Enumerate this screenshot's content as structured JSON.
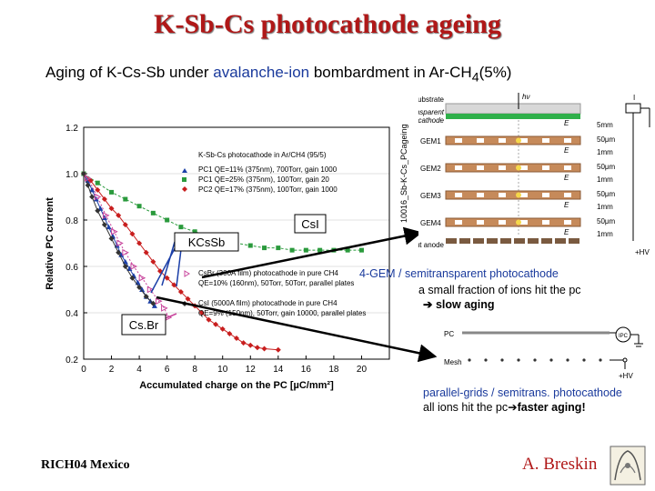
{
  "title": "K-Sb-Cs photocathode ageing",
  "subtitle": {
    "part1": "Aging of K-Cs-Sb under ",
    "highlight": "avalanche-ion",
    "part2": " bombardment in Ar-CH",
    "sub": "4",
    "part3": "(5%)"
  },
  "chart_data": {
    "type": "scatter",
    "xlabel": "Accumulated charge on the PC [µC/mm²]",
    "ylabel": "Relative PC current",
    "xlim": [
      0,
      22
    ],
    "ylim": [
      0.2,
      1.2
    ],
    "xticks": [
      "0",
      "2",
      "4",
      "6",
      "8",
      "10",
      "12",
      "14",
      "16",
      "18",
      "20"
    ],
    "yticks": [
      "0.2",
      "0.4",
      "0.6",
      "0.8",
      "1.0",
      "1.2"
    ],
    "side_label": "10016_Sb-K-Cs_PCageing",
    "legend1": {
      "title": "K-Sb-Cs photocathode in Ar/CH4 (95/5)",
      "entries": [
        "PC1 QE=11% (375nm), 700Torr, gain 1000",
        "PC1 QE=25% (375nm), 100Torr, gain 20",
        "PC2 QE=17% (375nm), 100Torr, gain 1000"
      ]
    },
    "legend2": [
      "CsBr (300A film) photocathode in pure CH4",
      "QE=10% (160nm), 50Torr, 50Torr, parallel plates",
      "CsI (5000A film) photocathode in pure CH4",
      "QE=9% (150nm), 50Torr, gain 10000, parallel plates"
    ],
    "series": [
      {
        "name": "PC1 700Torr gain 1000",
        "color": "#1b3fa8",
        "marker": "triangle",
        "x": [
          0,
          0.3,
          0.6,
          0.9,
          1.2,
          1.5,
          1.8,
          2.1,
          2.4,
          2.7,
          3.0,
          3.3,
          3.6,
          3.9,
          4.2,
          4.5,
          4.8,
          5.1
        ],
        "y": [
          1.0,
          0.97,
          0.93,
          0.89,
          0.85,
          0.81,
          0.77,
          0.73,
          0.69,
          0.65,
          0.62,
          0.59,
          0.56,
          0.53,
          0.5,
          0.47,
          0.45,
          0.43
        ]
      },
      {
        "name": "PC1 100Torr gain 20",
        "color": "#2a9a3c",
        "marker": "square",
        "x": [
          0,
          1,
          2,
          3,
          4,
          5,
          6,
          7,
          8,
          9,
          10,
          11,
          12,
          13,
          14,
          15,
          16,
          17,
          18,
          19,
          20
        ],
        "y": [
          1.0,
          0.96,
          0.92,
          0.89,
          0.86,
          0.83,
          0.8,
          0.77,
          0.75,
          0.73,
          0.71,
          0.7,
          0.69,
          0.68,
          0.68,
          0.67,
          0.67,
          0.67,
          0.67,
          0.67,
          0.67
        ]
      },
      {
        "name": "PC2 100Torr gain 1000",
        "color": "#c81e1e",
        "marker": "diamond",
        "x": [
          0,
          0.5,
          1,
          1.5,
          2,
          2.5,
          3,
          3.5,
          4,
          4.5,
          5,
          5.5,
          6,
          6.5,
          7,
          7.5,
          8,
          8.5,
          9,
          9.5,
          10,
          10.5,
          11,
          11.5,
          12,
          12.5,
          13,
          14
        ],
        "y": [
          1.0,
          0.97,
          0.93,
          0.89,
          0.85,
          0.82,
          0.78,
          0.74,
          0.7,
          0.66,
          0.62,
          0.58,
          0.55,
          0.52,
          0.49,
          0.46,
          0.43,
          0.4,
          0.37,
          0.35,
          0.33,
          0.31,
          0.29,
          0.27,
          0.26,
          0.25,
          0.245,
          0.24
        ]
      },
      {
        "name": "CsI",
        "color": "#333333",
        "marker": "diamond",
        "x": [
          0,
          0.3,
          0.6,
          1.0,
          1.5,
          2.0,
          2.5,
          3.0,
          3.5,
          4.0,
          4.5,
          5.0
        ],
        "y": [
          1.0,
          0.95,
          0.9,
          0.84,
          0.78,
          0.72,
          0.66,
          0.6,
          0.55,
          0.51,
          0.47,
          0.44
        ]
      },
      {
        "name": "CsBr",
        "color": "#c8459c",
        "marker": "open-triangle",
        "x": [
          0.3,
          1.0,
          1.6,
          2.2,
          2.6,
          3.0,
          3.6,
          4.2,
          4.8,
          5.4,
          5.8,
          6.1
        ],
        "y": [
          0.98,
          0.9,
          0.82,
          0.75,
          0.7,
          0.66,
          0.6,
          0.55,
          0.5,
          0.45,
          0.42,
          0.38
        ]
      }
    ]
  },
  "annotations": {
    "csi": "CsI",
    "kcssb": "KCsSb",
    "csbr": "Cs.Br"
  },
  "gem": {
    "labels": {
      "substrate": "substrate",
      "semi1": "semi-transparent",
      "semi2": "photocathode",
      "readout": "readout anode",
      "hv": "hν",
      "iac": "I",
      "hv_bottom": "+HV"
    },
    "gems": [
      "GEM1",
      "GEM2",
      "GEM3",
      "GEM4"
    ],
    "fields": [
      "E",
      "E",
      "E",
      "E",
      "E",
      "E"
    ],
    "dims": [
      "5mm",
      "50μm",
      "1mm",
      "50μm",
      "1mm",
      "50μm",
      "1mm",
      "50μm",
      "1mm"
    ]
  },
  "parallel": {
    "pc": "PC",
    "mesh": "Mesh",
    "ipc": "IPC",
    "hv": "+HV"
  },
  "notes": {
    "gem_text": "4-GEM / semitransparent photocathode",
    "gem_frac": "a small fraction of ions hit the pc",
    "gem_slow": "slow aging",
    "par_text": "parallel-grids / semitrans. photocathode",
    "par_all": "all ions hit the pc",
    "par_fast": "faster aging!"
  },
  "footer": {
    "left": "RICH04 Mexico",
    "right": "A. Breskin"
  }
}
